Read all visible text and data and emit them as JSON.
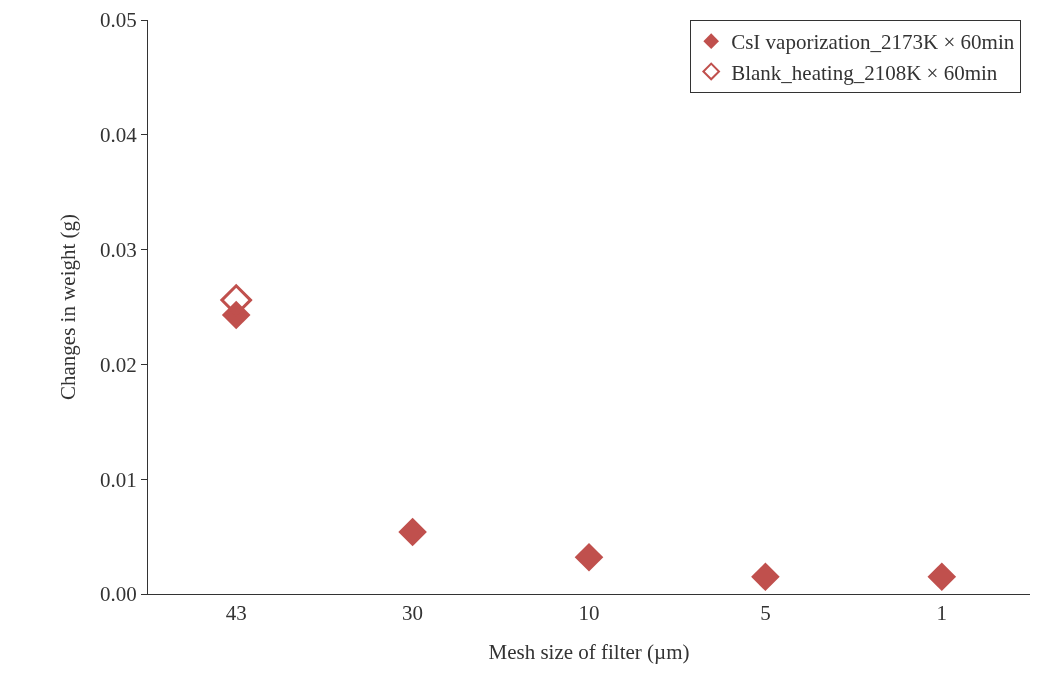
{
  "chart_data": {
    "type": "scatter",
    "xlabel": "Mesh size of filter (µm)",
    "ylabel": "Changes in weight (g)",
    "categories": [
      "43",
      "30",
      "10",
      "5",
      "1"
    ],
    "series": [
      {
        "name": "CsI vaporization_2173K × 60min",
        "color": "#c0504d",
        "values": [
          0.0243,
          0.0054,
          0.0032,
          0.0015,
          0.0015
        ]
      },
      {
        "name": "Blank_heating_2108K × 60min",
        "color": "#c0504d",
        "values": [
          0.0256,
          null,
          null,
          null,
          null
        ]
      }
    ],
    "ylim": [
      0,
      0.05
    ],
    "yticks": [
      {
        "value": 0,
        "label": "0.00"
      },
      {
        "value": 0.01,
        "label": "0.01"
      },
      {
        "value": 0.02,
        "label": "0.02"
      },
      {
        "value": 0.03,
        "label": "0.03"
      },
      {
        "value": 0.04,
        "label": "0.04"
      },
      {
        "value": 0.05,
        "label": "0.05"
      }
    ],
    "marker": "diamond",
    "grid": false,
    "legend": "top right"
  }
}
